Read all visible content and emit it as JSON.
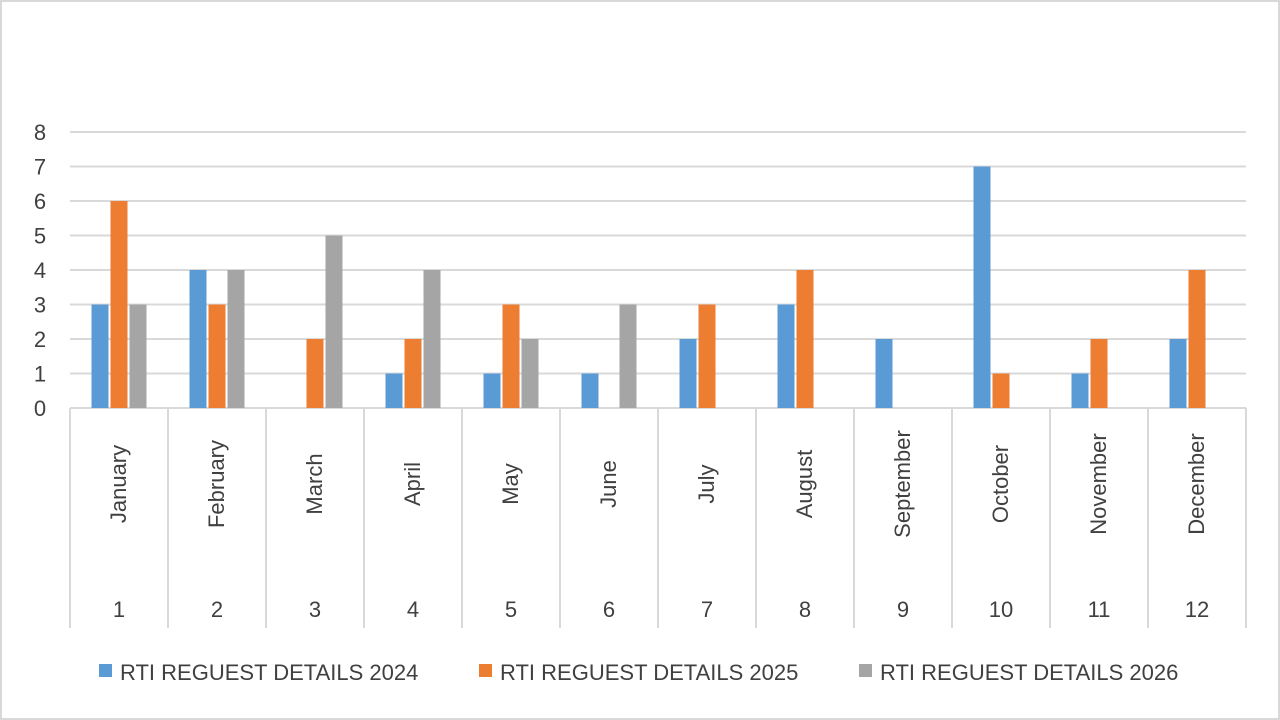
{
  "chart_data": {
    "type": "bar",
    "title": "",
    "xlabel": "",
    "ylabel": "",
    "ylim": [
      0,
      8
    ],
    "yticks": [
      0,
      1,
      2,
      3,
      4,
      5,
      6,
      7,
      8
    ],
    "grid": true,
    "legend_position": "bottom",
    "categories": [
      {
        "month": "January",
        "number": "1"
      },
      {
        "month": "February",
        "number": "2"
      },
      {
        "month": "March",
        "number": "3"
      },
      {
        "month": "April",
        "number": "4"
      },
      {
        "month": "May",
        "number": "5"
      },
      {
        "month": "June",
        "number": "6"
      },
      {
        "month": "July",
        "number": "7"
      },
      {
        "month": "August",
        "number": "8"
      },
      {
        "month": "September",
        "number": "9"
      },
      {
        "month": "October",
        "number": "10"
      },
      {
        "month": "November",
        "number": "11"
      },
      {
        "month": "December",
        "number": "12"
      }
    ],
    "series": [
      {
        "name": "RTI REGUEST DETAILS 2024",
        "color": "#5b9bd5",
        "values": [
          3,
          4,
          0,
          1,
          1,
          1,
          2,
          3,
          2,
          7,
          1,
          2
        ]
      },
      {
        "name": "RTI REGUEST DETAILS 2025",
        "color": "#ed7d31",
        "values": [
          6,
          3,
          2,
          2,
          3,
          0,
          3,
          4,
          0,
          1,
          2,
          4
        ]
      },
      {
        "name": "RTI REGUEST DETAILS 2026",
        "color": "#a5a5a5",
        "values": [
          3,
          4,
          5,
          4,
          2,
          3,
          0,
          0,
          0,
          0,
          0,
          0
        ]
      }
    ],
    "colors": {
      "gridline": "#d9d9d9",
      "axis_text": "#404040",
      "category_border": "#d9d9d9"
    }
  }
}
